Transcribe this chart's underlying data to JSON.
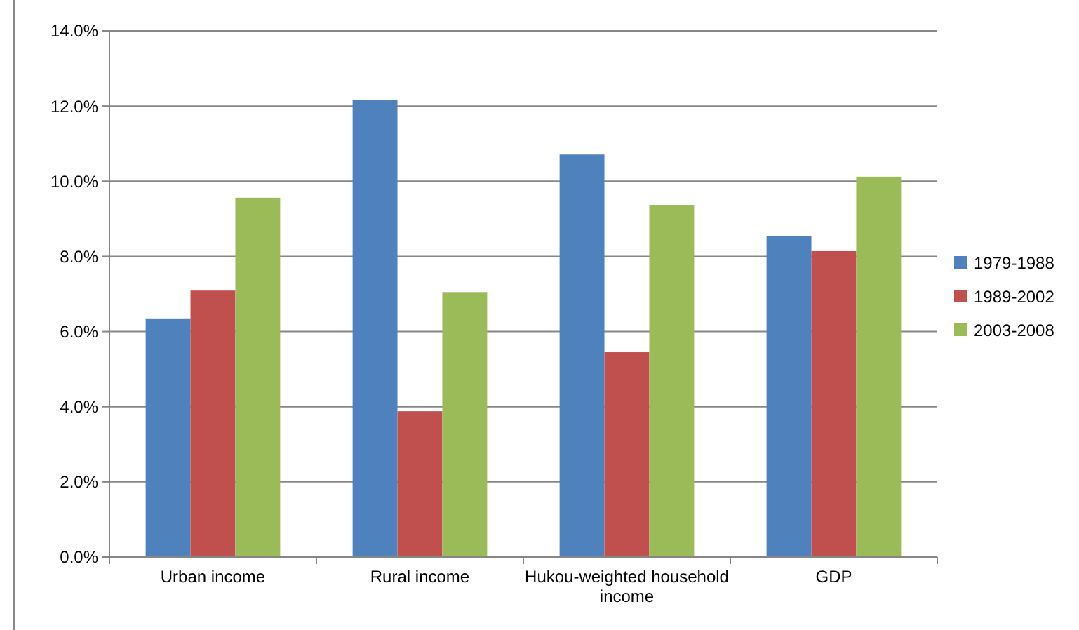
{
  "chart_data": {
    "type": "bar",
    "categories": [
      "Urban income",
      "Rural income",
      "Hukou-weighted household income",
      "GDP"
    ],
    "series": [
      {
        "name": "1979-1988",
        "color": "#4f81bd",
        "values": [
          6.35,
          12.17,
          10.71,
          8.55
        ]
      },
      {
        "name": "1989-2002",
        "color": "#c0504d",
        "values": [
          7.09,
          3.88,
          5.45,
          8.14
        ]
      },
      {
        "name": "2003-2008",
        "color": "#9bbb59",
        "values": [
          9.56,
          7.05,
          9.37,
          10.12
        ]
      }
    ],
    "ylim": [
      0,
      14
    ],
    "yticks": [
      {
        "value": 0,
        "label": "0.0%"
      },
      {
        "value": 2,
        "label": "2.0%"
      },
      {
        "value": 4,
        "label": "4.0%"
      },
      {
        "value": 6,
        "label": "6.0%"
      },
      {
        "value": 8,
        "label": "8.0%"
      },
      {
        "value": 10,
        "label": "10.0%"
      },
      {
        "value": 12,
        "label": "12.0%"
      },
      {
        "value": 14,
        "label": "14.0%"
      }
    ],
    "grid": "y",
    "legend": "right"
  }
}
